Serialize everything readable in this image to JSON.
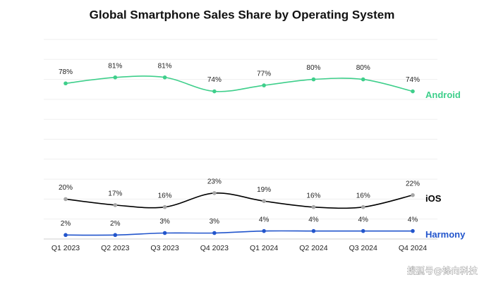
{
  "chart_data": {
    "type": "line",
    "title": "Global Smartphone Sales Share by Operating System",
    "categories": [
      "Q1 2023",
      "Q2 2023",
      "Q3 2023",
      "Q4 2023",
      "Q1 2024",
      "Q2 2024",
      "Q3 2024",
      "Q4 2024"
    ],
    "series": [
      {
        "name": "Android",
        "color": "#3ecf8b",
        "marker_color": "#3ecf8b",
        "values": [
          78,
          81,
          81,
          74,
          77,
          80,
          80,
          74
        ],
        "value_labels": [
          "78%",
          "81%",
          "81%",
          "74%",
          "77%",
          "80%",
          "80%",
          "74%"
        ]
      },
      {
        "name": "iOS",
        "color": "#000000",
        "marker_color": "#a6a6a6",
        "values": [
          20,
          17,
          16,
          23,
          19,
          16,
          16,
          22
        ],
        "value_labels": [
          "20%",
          "17%",
          "16%",
          "23%",
          "19%",
          "16%",
          "16%",
          "22%"
        ]
      },
      {
        "name": "Harmony",
        "color": "#2255cc",
        "marker_color": "#2255cc",
        "values": [
          2,
          2,
          3,
          3,
          4,
          4,
          4,
          4
        ],
        "value_labels": [
          "2%",
          "2%",
          "3%",
          "3%",
          "4%",
          "4%",
          "4%",
          "4%"
        ]
      }
    ],
    "ylim": [
      0,
      100
    ],
    "yticks": [
      0,
      10,
      20,
      30,
      40,
      50,
      60,
      70,
      80,
      90,
      100
    ],
    "grid": true,
    "smooth": true
  },
  "watermark": "搜狐号@锋向科技"
}
